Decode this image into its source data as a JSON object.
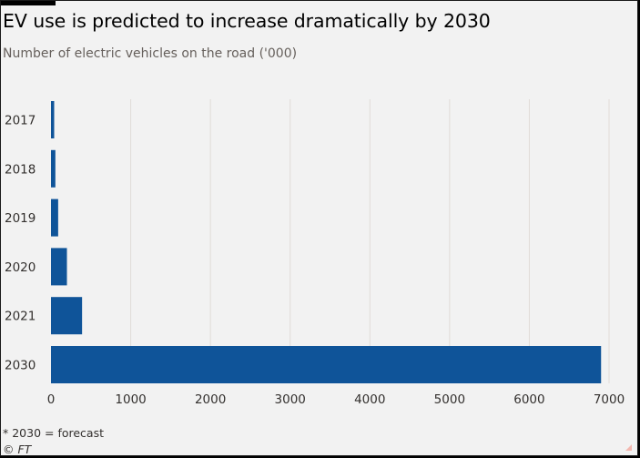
{
  "header": {
    "title": "EV use is predicted to increase dramatically by 2030",
    "subtitle": "Number of electric vehicles on the road ('000)"
  },
  "footer": {
    "footnote": "* 2030 = forecast",
    "source": "© FT"
  },
  "colors": {
    "bar": "#0f5499",
    "grid": "#e1dcd8",
    "background": "#f2f2f2"
  },
  "chart_data": {
    "type": "bar",
    "orientation": "horizontal",
    "title": "EV use is predicted to increase dramatically by 2030",
    "subtitle": "Number of electric vehicles on the road ('000)",
    "categories": [
      "2017",
      "2018",
      "2019",
      "2020",
      "2021",
      "2030"
    ],
    "values": [
      40,
      55,
      90,
      200,
      390,
      6900
    ],
    "xlim": [
      0,
      7000
    ],
    "xticks": [
      "0",
      "1000",
      "2000",
      "3000",
      "4000",
      "5000",
      "6000",
      "7000"
    ],
    "grid": true,
    "legend": "none"
  }
}
